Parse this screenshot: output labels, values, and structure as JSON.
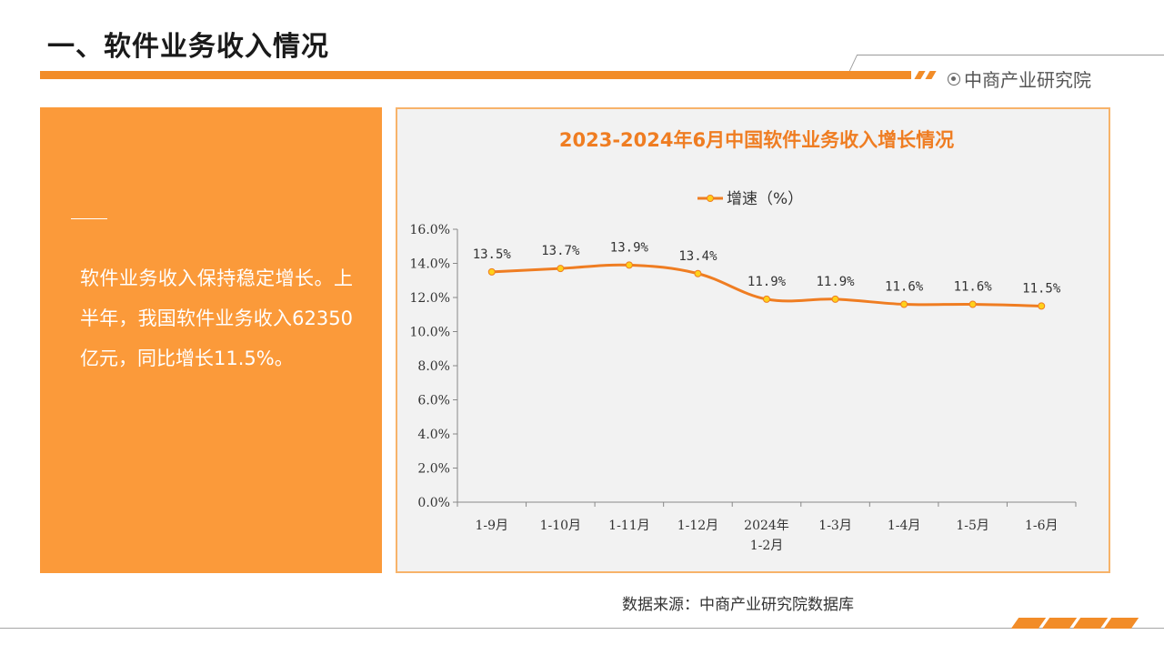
{
  "page": {
    "title": "一、软件业务收入情况",
    "brand": "中商产业研究院",
    "source": "数据来源：中商产业研究院数据库"
  },
  "summary": {
    "text": "软件业务收入保持稳定增长。上半年，我国软件业务收入62350亿元，同比增长11.5%。"
  },
  "colors": {
    "accent": "#f28c28",
    "panel": "#fb9a3a",
    "line": "#ef7d22",
    "marker_fill": "#ffd11a",
    "chart_bg": "#f2f2f2"
  },
  "chart_data": {
    "type": "line",
    "title": "2023-2024年6月中国软件业务收入增长情况",
    "categories": [
      "1-9月",
      "1-10月",
      "1-11月",
      "1-12月",
      "2024年\n1-2月",
      "1-3月",
      "1-4月",
      "1-5月",
      "1-6月"
    ],
    "series": [
      {
        "name": "增速（%）",
        "values": [
          13.5,
          13.7,
          13.9,
          13.4,
          11.9,
          11.9,
          11.6,
          11.6,
          11.5
        ]
      }
    ],
    "data_labels": [
      "13.5%",
      "13.7%",
      "13.9%",
      "13.4%",
      "11.9%",
      "11.9%",
      "11.6%",
      "11.6%",
      "11.5%"
    ],
    "y_ticks": [
      "0.0%",
      "2.0%",
      "4.0%",
      "6.0%",
      "8.0%",
      "10.0%",
      "12.0%",
      "14.0%",
      "16.0%"
    ],
    "ylim": [
      0,
      16
    ],
    "legend_position": "top-center",
    "grid": false,
    "smooth": true
  }
}
